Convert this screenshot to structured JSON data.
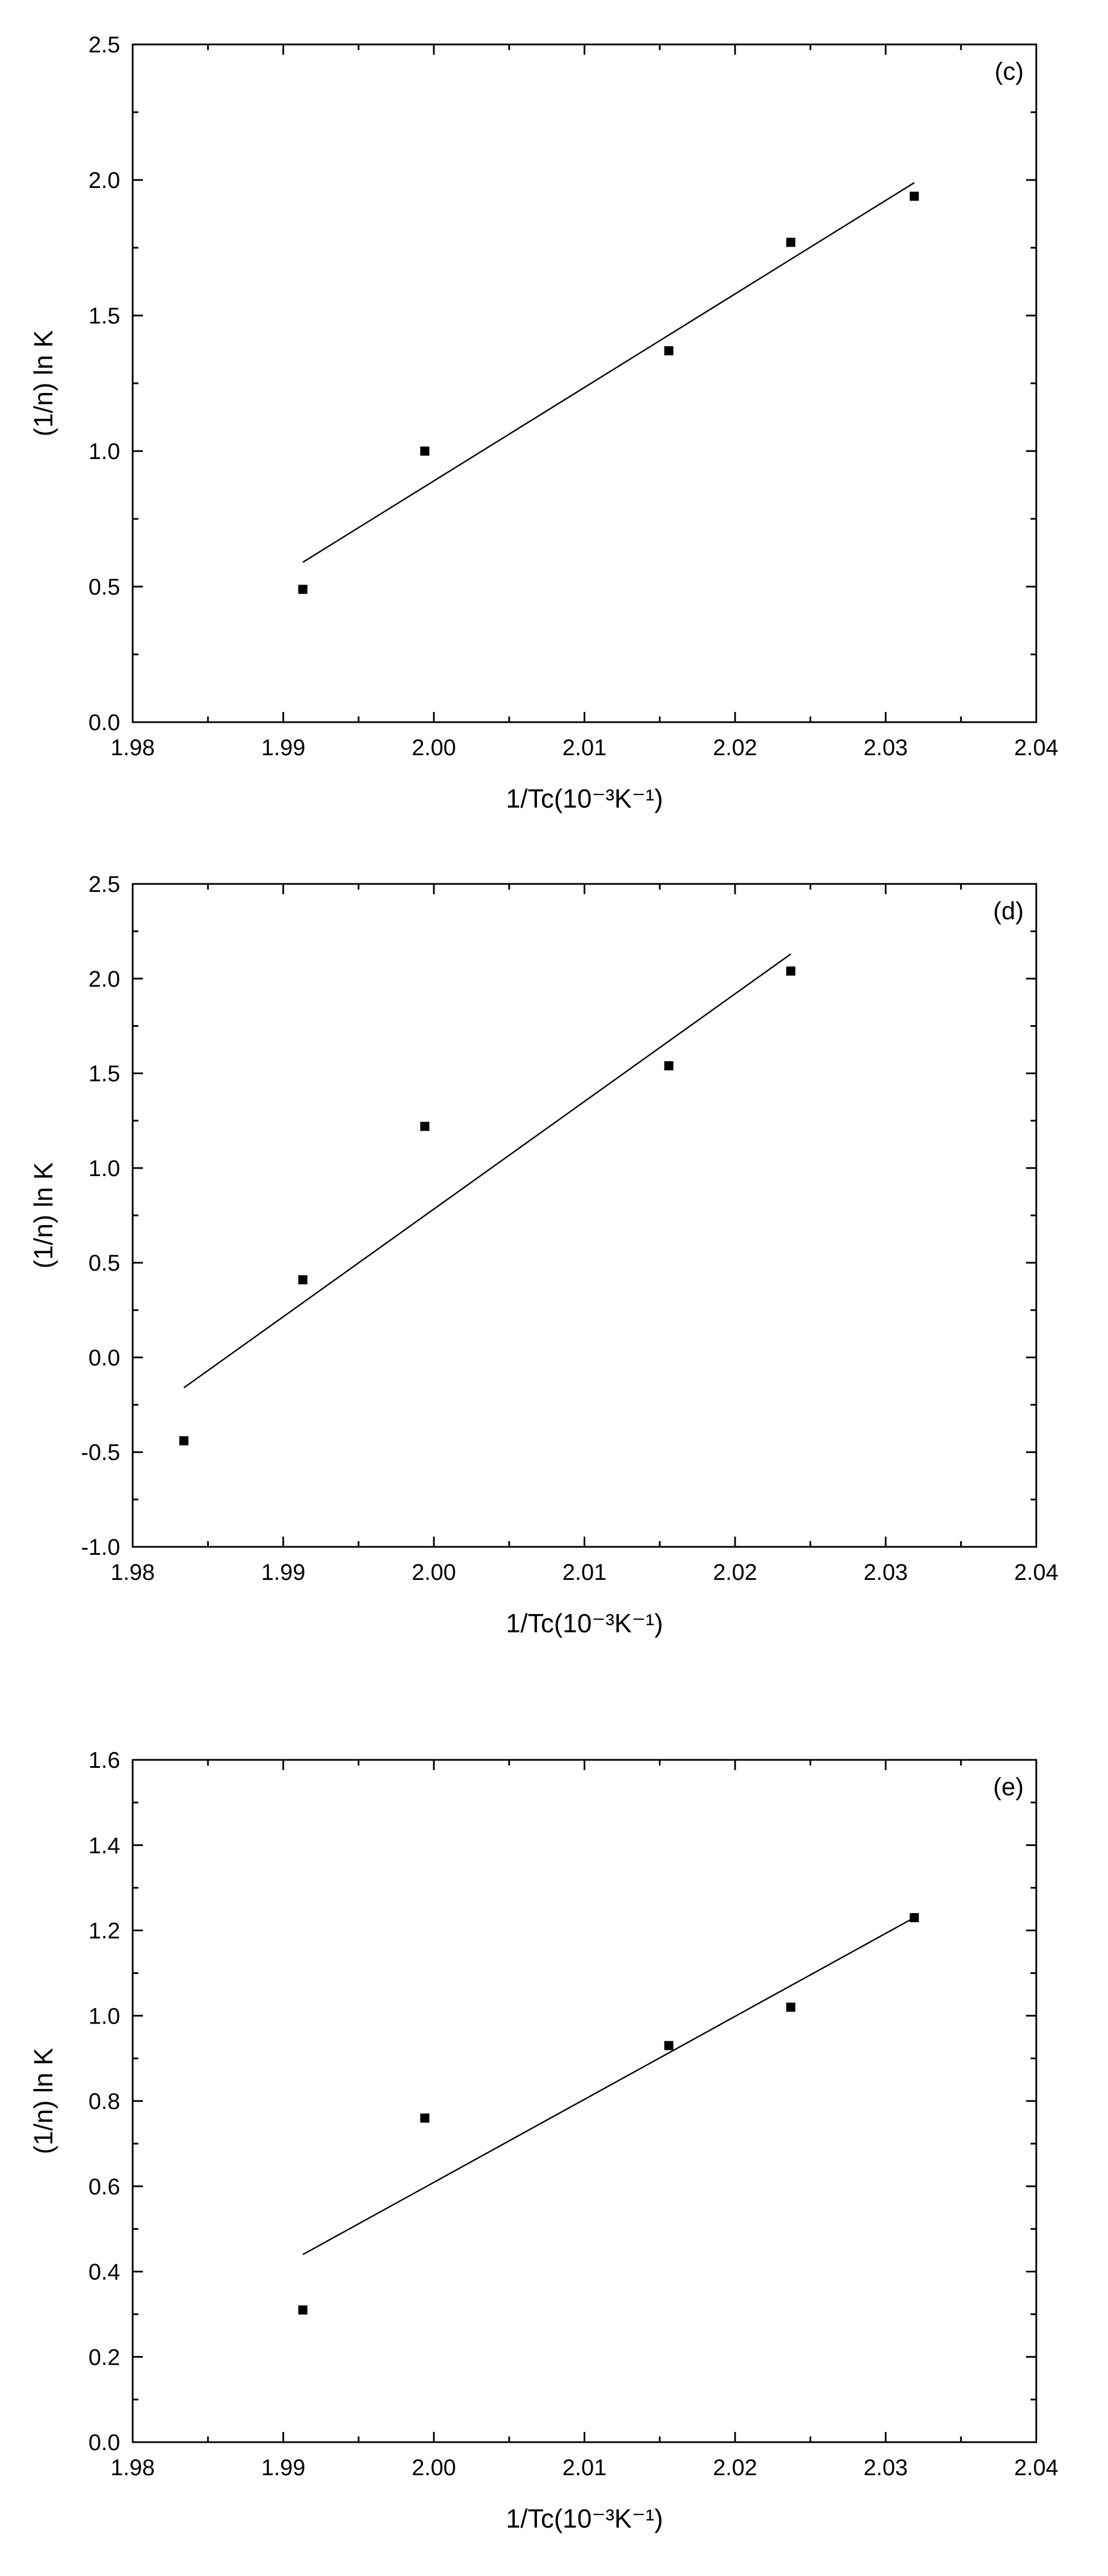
{
  "chart_data": [
    {
      "type": "scatter",
      "panel_label": "(c)",
      "xlabel": "1/Tc(10⁻³K⁻¹)",
      "ylabel": "(1/n) ln K",
      "xlim": [
        1.98,
        2.04
      ],
      "ylim": [
        0.0,
        2.5
      ],
      "xticks": [
        "1.98",
        "1.99",
        "2.00",
        "2.01",
        "2.02",
        "2.03",
        "2.04"
      ],
      "yticks": [
        "0.0",
        "0.5",
        "1.0",
        "1.5",
        "2.0",
        "2.5"
      ],
      "grid": false,
      "points": {
        "x": [
          1.9913,
          1.9994,
          2.0156,
          2.0237,
          2.0319
        ],
        "y": [
          0.49,
          1.0,
          1.37,
          1.77,
          1.94
        ]
      },
      "fit_line": {
        "x": [
          1.9913,
          2.0319
        ],
        "y": [
          0.59,
          1.99
        ]
      }
    },
    {
      "type": "scatter",
      "panel_label": "(d)",
      "xlabel": "1/Tc(10⁻³K⁻¹)",
      "ylabel": "(1/n) ln K",
      "xlim": [
        1.98,
        2.04
      ],
      "ylim": [
        -1.0,
        2.5
      ],
      "xticks": [
        "1.98",
        "1.99",
        "2.00",
        "2.01",
        "2.02",
        "2.03",
        "2.04"
      ],
      "yticks": [
        "-1.0",
        "-0.5",
        "0.0",
        "0.5",
        "1.0",
        "1.5",
        "2.0",
        "2.5"
      ],
      "grid": false,
      "points": {
        "x": [
          1.9834,
          1.9913,
          1.9994,
          2.0156,
          2.0237
        ],
        "y": [
          -0.44,
          0.41,
          1.22,
          1.54,
          2.04
        ]
      },
      "fit_line": {
        "x": [
          1.9834,
          2.0237
        ],
        "y": [
          -0.16,
          2.13
        ]
      }
    },
    {
      "type": "scatter",
      "panel_label": "(e)",
      "xlabel": "1/Tc(10⁻³K⁻¹)",
      "ylabel": "(1/n) ln K",
      "xlim": [
        1.98,
        2.04
      ],
      "ylim": [
        0.0,
        1.6
      ],
      "xticks": [
        "1.98",
        "1.99",
        "2.00",
        "2.01",
        "2.02",
        "2.03",
        "2.04"
      ],
      "yticks": [
        "0.0",
        "0.2",
        "0.4",
        "0.6",
        "0.8",
        "1.0",
        "1.2",
        "1.4",
        "1.6"
      ],
      "grid": false,
      "points": {
        "x": [
          1.9913,
          1.9994,
          2.0156,
          2.0237,
          2.0319
        ],
        "y": [
          0.31,
          0.76,
          0.93,
          1.02,
          1.23
        ]
      },
      "fit_line": {
        "x": [
          1.9913,
          2.0319
        ],
        "y": [
          0.44,
          1.23
        ]
      }
    }
  ]
}
